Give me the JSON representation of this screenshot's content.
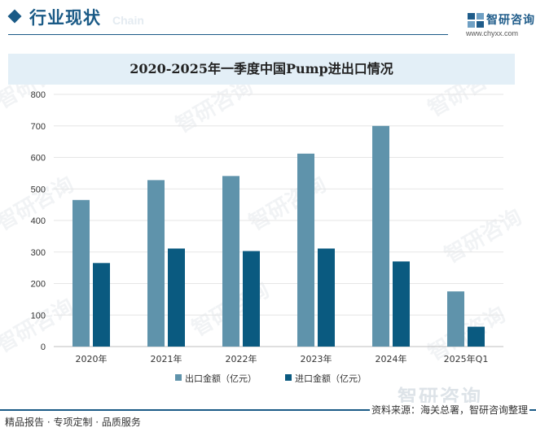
{
  "header": {
    "section_title": "行业现状",
    "watermark_text": "Chain",
    "brand_name": "智研咨询",
    "brand_url": "www.chyxx.com"
  },
  "watermark": {
    "text": "智研咨询"
  },
  "chart_data": {
    "type": "bar",
    "title": "2020-2025年一季度中国Pump进出口情况",
    "categories": [
      "2020年",
      "2021年",
      "2022年",
      "2023年",
      "2024年",
      "2025年Q1"
    ],
    "series": [
      {
        "name": "出口金额（亿元）",
        "color": "#5f93ab",
        "values": [
          465,
          528,
          541,
          612,
          700,
          175
        ]
      },
      {
        "name": "进口金额（亿元）",
        "color": "#0a5a80",
        "values": [
          265,
          311,
          303,
          311,
          270,
          63
        ]
      }
    ],
    "ylim": [
      0,
      800
    ],
    "yticks": [
      0,
      100,
      200,
      300,
      400,
      500,
      600,
      700,
      800
    ],
    "grid": true,
    "legend_position": "bottom"
  },
  "footer": {
    "left": "精品报告 · 专项定制 · 品质服务",
    "right": "资料来源：海关总署，智研咨询整理"
  }
}
